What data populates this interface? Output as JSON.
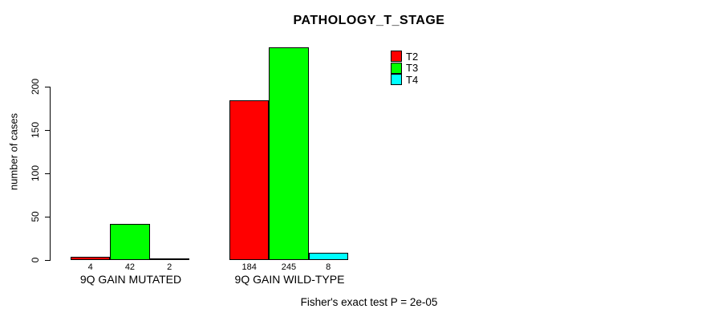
{
  "chart_data": {
    "type": "bar",
    "title": "PATHOLOGY_T_STAGE",
    "ylabel": "number of cases",
    "xlabel": "",
    "categories": [
      "9Q GAIN MUTATED",
      "9Q GAIN WILD-TYPE"
    ],
    "series": [
      {
        "name": "T2",
        "color": "#ff0000",
        "values": [
          4,
          184
        ]
      },
      {
        "name": "T3",
        "color": "#00ff00",
        "values": [
          42,
          245
        ]
      },
      {
        "name": "T4",
        "color": "#00ffff",
        "values": [
          2,
          8
        ]
      }
    ],
    "yticks": [
      0,
      50,
      100,
      150,
      200
    ],
    "ylim": [
      0,
      245
    ],
    "grid": false,
    "legend_position": "top-right",
    "bar_values_shown": true,
    "annotation": "Fisher's exact test P = 2e-05"
  }
}
